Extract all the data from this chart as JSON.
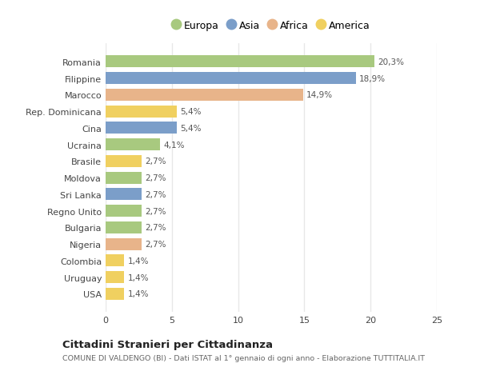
{
  "countries": [
    "Romania",
    "Filippine",
    "Marocco",
    "Rep. Dominicana",
    "Cina",
    "Ucraina",
    "Brasile",
    "Moldova",
    "Sri Lanka",
    "Regno Unito",
    "Bulgaria",
    "Nigeria",
    "Colombia",
    "Uruguay",
    "USA"
  ],
  "values": [
    20.3,
    18.9,
    14.9,
    5.4,
    5.4,
    4.1,
    2.7,
    2.7,
    2.7,
    2.7,
    2.7,
    2.7,
    1.4,
    1.4,
    1.4
  ],
  "labels": [
    "20,3%",
    "18,9%",
    "14,9%",
    "5,4%",
    "5,4%",
    "4,1%",
    "2,7%",
    "2,7%",
    "2,7%",
    "2,7%",
    "2,7%",
    "2,7%",
    "1,4%",
    "1,4%",
    "1,4%"
  ],
  "continents": [
    "Europa",
    "Asia",
    "Africa",
    "America",
    "Asia",
    "Europa",
    "America",
    "Europa",
    "Asia",
    "Europa",
    "Europa",
    "Africa",
    "America",
    "America",
    "America"
  ],
  "colors": {
    "Europa": "#a8c97f",
    "Asia": "#7b9ec9",
    "Africa": "#e8b48a",
    "America": "#f0d060"
  },
  "legend_labels": [
    "Europa",
    "Asia",
    "Africa",
    "America"
  ],
  "legend_colors": [
    "#a8c97f",
    "#7b9ec9",
    "#e8b48a",
    "#f0d060"
  ],
  "xlim": [
    0,
    25
  ],
  "xticks": [
    0,
    5,
    10,
    15,
    20,
    25
  ],
  "title": "Cittadini Stranieri per Cittadinanza",
  "subtitle": "COMUNE DI VALDENGO (BI) - Dati ISTAT al 1° gennaio di ogni anno - Elaborazione TUTTITALIA.IT",
  "background_color": "#ffffff",
  "grid_color": "#e8e8e8",
  "bar_height": 0.72
}
